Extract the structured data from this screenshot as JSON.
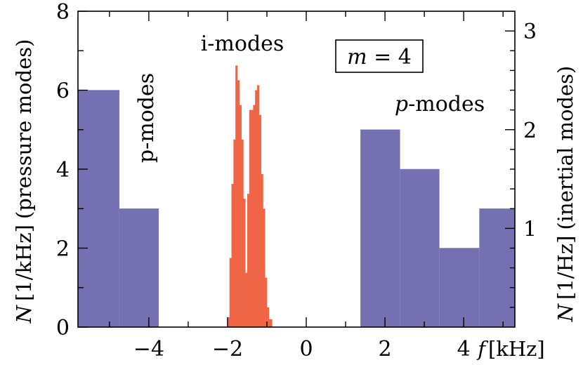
{
  "chart_data": {
    "type": "bar",
    "xlabel": {
      "var": "f",
      "unit": "[kHz]"
    },
    "ylabel_left": {
      "var": "N",
      "unit": "[1/kHz]",
      "desc": "(pressure modes)"
    },
    "ylabel_right": {
      "var": "N",
      "unit": "[1/Hz]",
      "desc": "(inertial modes)"
    },
    "xlim": [
      -5.8,
      5.3
    ],
    "ylim_left": [
      0,
      8
    ],
    "ylim_right": [
      0,
      3.2
    ],
    "x_ticks": [
      -4,
      -2,
      0,
      2,
      4
    ],
    "x_tick_labels": [
      "−4",
      "−2",
      "0",
      "2",
      "4"
    ],
    "y_left_ticks": [
      0,
      2,
      4,
      6,
      8
    ],
    "y_left_tick_labels": [
      "0",
      "2",
      "4",
      "6",
      "8"
    ],
    "y_right_ticks": [
      1,
      2,
      3
    ],
    "y_right_tick_labels": [
      "1",
      "2",
      "3"
    ],
    "annotations": {
      "i_modes": "i-modes",
      "p_modes_left": "p-modes",
      "p_modes_right_var": "p",
      "p_modes_right_suffix": "-modes",
      "m_var": "m",
      "m_value": " = 4"
    },
    "series": [
      {
        "axis": "left",
        "color": "#7470b2",
        "bins": [
          {
            "x0": -5.8,
            "x1": -4.75,
            "value": 6
          },
          {
            "x0": -4.75,
            "x1": -3.75,
            "value": 3
          },
          {
            "x0": 1.38,
            "x1": 2.38,
            "value": 5
          },
          {
            "x0": 2.38,
            "x1": 3.38,
            "value": 4
          },
          {
            "x0": 3.38,
            "x1": 4.4,
            "value": 2
          },
          {
            "x0": 4.4,
            "x1": 5.3,
            "value": 3
          }
        ]
      },
      {
        "axis": "right",
        "color": "#f06546",
        "bins": [
          {
            "x0": -2.0,
            "x1": -1.95,
            "value": 0.1
          },
          {
            "x0": -1.95,
            "x1": -1.9,
            "value": 0.7
          },
          {
            "x0": -1.9,
            "x1": -1.85,
            "value": 1.45
          },
          {
            "x0": -1.85,
            "x1": -1.8,
            "value": 1.9
          },
          {
            "x0": -1.8,
            "x1": -1.75,
            "value": 2.65
          },
          {
            "x0": -1.75,
            "x1": -1.7,
            "value": 2.5
          },
          {
            "x0": -1.7,
            "x1": -1.65,
            "value": 2.25
          },
          {
            "x0": -1.65,
            "x1": -1.6,
            "value": 1.9
          },
          {
            "x0": -1.6,
            "x1": -1.55,
            "value": 1.3
          },
          {
            "x0": -1.55,
            "x1": -1.5,
            "value": 0.55
          },
          {
            "x0": -1.5,
            "x1": -1.45,
            "value": 1.35
          },
          {
            "x0": -1.45,
            "x1": -1.4,
            "value": 2.2
          },
          {
            "x0": -1.4,
            "x1": -1.35,
            "value": 2.2
          },
          {
            "x0": -1.35,
            "x1": -1.3,
            "value": 2.25
          },
          {
            "x0": -1.3,
            "x1": -1.25,
            "value": 2.4
          },
          {
            "x0": -1.25,
            "x1": -1.2,
            "value": 2.45
          },
          {
            "x0": -1.2,
            "x1": -1.15,
            "value": 2.15
          },
          {
            "x0": -1.15,
            "x1": -1.1,
            "value": 1.55
          },
          {
            "x0": -1.1,
            "x1": -1.05,
            "value": 1.2
          },
          {
            "x0": -1.05,
            "x1": -1.0,
            "value": 0.5
          },
          {
            "x0": -1.0,
            "x1": -0.95,
            "value": 0.2
          },
          {
            "x0": -0.95,
            "x1": -0.87,
            "value": 0.08
          }
        ]
      }
    ]
  }
}
